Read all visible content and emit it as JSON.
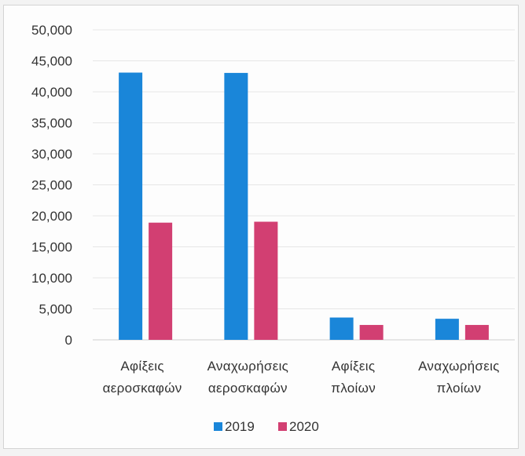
{
  "chart_data": {
    "type": "bar",
    "categories": [
      [
        "Αφίξεις",
        "αεροσκαφών"
      ],
      [
        "Αναχωρήσεις",
        "αεροσκαφών"
      ],
      [
        "Αφίξεις",
        "πλοίων"
      ],
      [
        "Αναχωρήσεις",
        "πλοίων"
      ]
    ],
    "series": [
      {
        "name": "2019",
        "color": "#1a86d9",
        "values": [
          43100,
          43050,
          3600,
          3400
        ]
      },
      {
        "name": "2020",
        "color": "#d23f72",
        "values": [
          18900,
          19050,
          2400,
          2400
        ]
      }
    ],
    "ylim": [
      0,
      50000
    ],
    "yticks": [
      "0",
      "5,000",
      "10,000",
      "15,000",
      "20,000",
      "25,000",
      "30,000",
      "35,000",
      "40,000",
      "45,000",
      "50,000"
    ],
    "grid": true,
    "legend": "bottom"
  }
}
